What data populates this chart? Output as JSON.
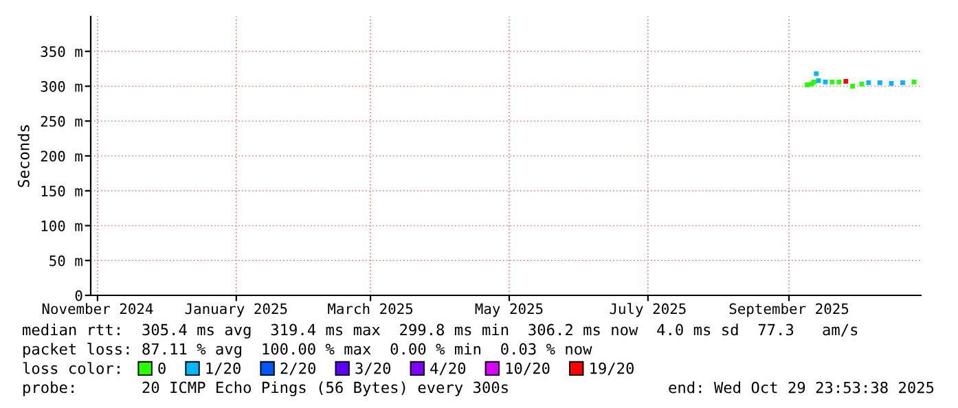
{
  "chart_data": {
    "type": "scatter",
    "ylabel": "Seconds",
    "legend_title": "loss color:",
    "legend": "bottom",
    "grid": true,
    "marker": "square",
    "xlim": [
      "2024-10-29",
      "2025-10-29"
    ],
    "xticks": [
      {
        "value": "2024-11-01",
        "label": "November 2024"
      },
      {
        "value": "2025-01-01",
        "label": "January 2025"
      },
      {
        "value": "2025-03-01",
        "label": "March 2025"
      },
      {
        "value": "2025-05-01",
        "label": "May 2025"
      },
      {
        "value": "2025-07-01",
        "label": "July 2025"
      },
      {
        "value": "2025-09-01",
        "label": "September 2025"
      }
    ],
    "ylim": [
      0,
      400
    ],
    "yticks": [
      0,
      {
        "value": 50,
        "label": "50 m"
      },
      {
        "value": 100,
        "label": "100 m"
      },
      {
        "value": 150,
        "label": "150 m"
      },
      {
        "value": 200,
        "label": "200 m"
      },
      {
        "value": 250,
        "label": "250 m"
      },
      {
        "value": 300,
        "label": "300 m"
      },
      {
        "value": 350,
        "label": "350 m"
      }
    ],
    "series": [
      {
        "name": "0",
        "color": "#26ff00",
        "x": [
          "2025-09-09",
          "2025-09-11",
          "2025-09-12",
          "2025-09-20",
          "2025-09-23",
          "2025-09-29",
          "2025-10-03",
          "2025-10-26"
        ],
        "values": [
          302,
          303,
          306,
          306,
          306,
          300,
          303,
          306
        ]
      },
      {
        "name": "1/20",
        "color": "#00b8ff",
        "x": [
          "2025-09-13",
          "2025-09-14",
          "2025-09-17",
          "2025-10-06",
          "2025-10-11",
          "2025-10-16",
          "2025-10-21"
        ],
        "values": [
          318,
          308,
          306,
          305,
          305,
          304,
          305
        ]
      },
      {
        "name": "2/20",
        "color": "#0059ff"
      },
      {
        "name": "3/20",
        "color": "#5e00ff"
      },
      {
        "name": "4/20",
        "color": "#7e00ff"
      },
      {
        "name": "10/20",
        "color": "#dd00ff"
      },
      {
        "name": "19/20",
        "color": "#ff0000",
        "x": [
          "2025-09-26"
        ],
        "values": [
          307
        ]
      }
    ],
    "annotations": [
      "median rtt:  305.4 ms avg  319.4 ms max  299.8 ms min  306.2 ms now  4.0 ms sd  77.3   am/s",
      "packet loss: 87.11 % avg  100.00 % max  0.00 % min  0.03 % now",
      "probe:       20 ICMP Echo Pings (56 Bytes) every 300s",
      "end: Wed Oct 29 23:53:38 2025"
    ]
  }
}
